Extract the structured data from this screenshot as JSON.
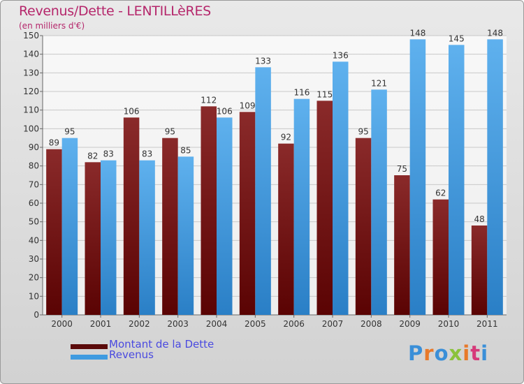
{
  "chart_data": {
    "type": "bar",
    "title": "Revenus/Dette - LENTILLèRES",
    "subtitle": "(en milliers d'€)",
    "categories": [
      "2000",
      "2001",
      "2002",
      "2003",
      "2004",
      "2005",
      "2006",
      "2007",
      "2008",
      "2009",
      "2010",
      "2011"
    ],
    "series": [
      {
        "name": "Montant de la Dette",
        "color": "#7a1a1a",
        "values": [
          89,
          82,
          106,
          95,
          112,
          109,
          92,
          115,
          95,
          75,
          62,
          48
        ]
      },
      {
        "name": "Revenus",
        "color": "#3f9be0",
        "values": [
          95,
          83,
          83,
          85,
          106,
          133,
          116,
          136,
          121,
          148,
          145,
          148
        ]
      }
    ],
    "ylim": [
      0,
      150
    ],
    "yticks": [
      0,
      10,
      20,
      30,
      40,
      50,
      60,
      70,
      80,
      90,
      100,
      110,
      120,
      130,
      140,
      150
    ],
    "grid": true,
    "legend_position": "bottom-left"
  },
  "logo": {
    "text": "Proxiti",
    "colors": [
      "#3a8fd8",
      "#e8792a",
      "#3a8fd8",
      "#8bc23c",
      "#e8792a",
      "#d63a7a",
      "#3a8fd8"
    ]
  }
}
